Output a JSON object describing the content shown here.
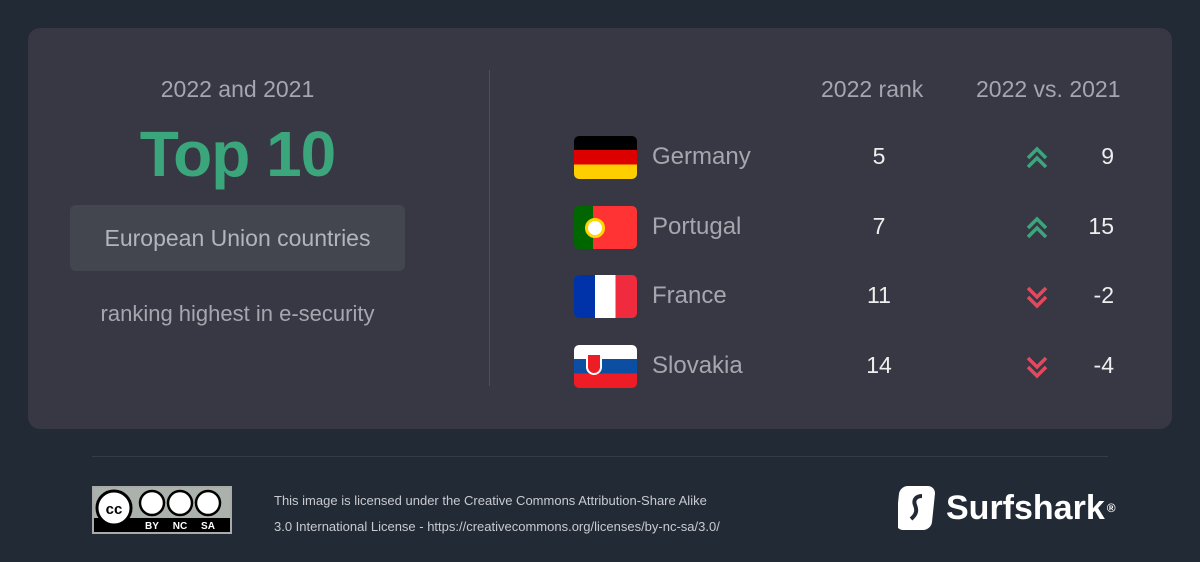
{
  "left": {
    "subtitle": "2022 and 2021",
    "title": "Top 10",
    "pill": "European Union countries",
    "caption": "ranking highest in e-security"
  },
  "headers": {
    "rank": "2022 rank",
    "change": "2022 vs. 2021"
  },
  "colors": {
    "up": "#3ba57b",
    "down": "#e5485d"
  },
  "rows": [
    {
      "country": "Germany",
      "rank": "5",
      "change": "9",
      "direction": "up"
    },
    {
      "country": "Portugal",
      "rank": "7",
      "change": "15",
      "direction": "up"
    },
    {
      "country": "France",
      "rank": "11",
      "change": "-2",
      "direction": "down"
    },
    {
      "country": "Slovakia",
      "rank": "14",
      "change": "-4",
      "direction": "down"
    }
  ],
  "footer": {
    "license_line1": "This image is licensed under the Creative Commons Attribution-Share Alike",
    "license_line2": "3.0 International License - https://creativecommons.org/licenses/by-nc-sa/3.0/",
    "cc_badge": "CC BY NC SA",
    "brand": "Surfshark",
    "brand_mark": "®"
  }
}
